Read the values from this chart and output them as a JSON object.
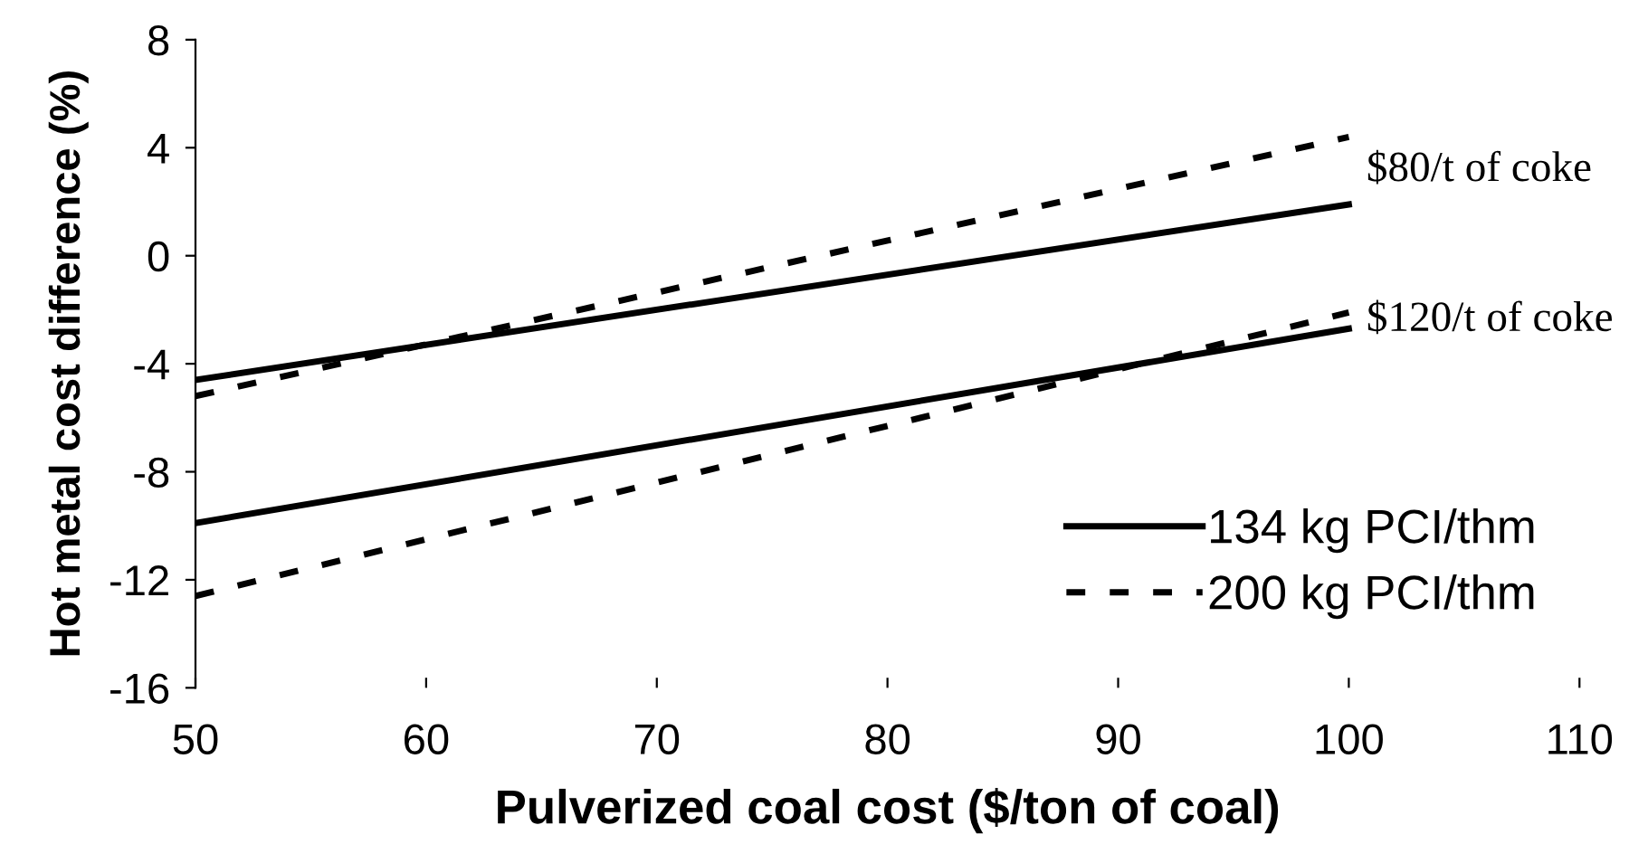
{
  "chart_data": {
    "type": "line",
    "xlabel": "Pulverized coal cost ($/ton of coal)",
    "ylabel": "Hot metal cost difference (%)",
    "x": [
      50,
      100
    ],
    "series": [
      {
        "name": "134 kg PCI/thm",
        "color": "#000000",
        "line_style": "solid",
        "values": [
          -4.6,
          1.9
        ]
      },
      {
        "name": "200 kg PCI/thm",
        "color": "#000000",
        "line_style": "dashed",
        "values": [
          -5.2,
          4.4
        ]
      },
      {
        "color": "#000000",
        "line_style": "solid",
        "values": [
          -9.9,
          -2.7
        ]
      },
      {
        "color": "#000000",
        "line_style": "dashed",
        "values": [
          -12.6,
          -2.1
        ]
      }
    ],
    "xlim": [
      50,
      110
    ],
    "xticks": [
      50,
      60,
      70,
      80,
      90,
      100,
      110
    ],
    "ylim": [
      -16,
      8
    ],
    "yticks": [
      -16,
      -12,
      -8,
      -4,
      0,
      4,
      8
    ],
    "annotations": [
      "$80/t of coke",
      "$120/t of coke"
    ],
    "legend": "bottom right",
    "grid": false,
    "marker": "none"
  }
}
